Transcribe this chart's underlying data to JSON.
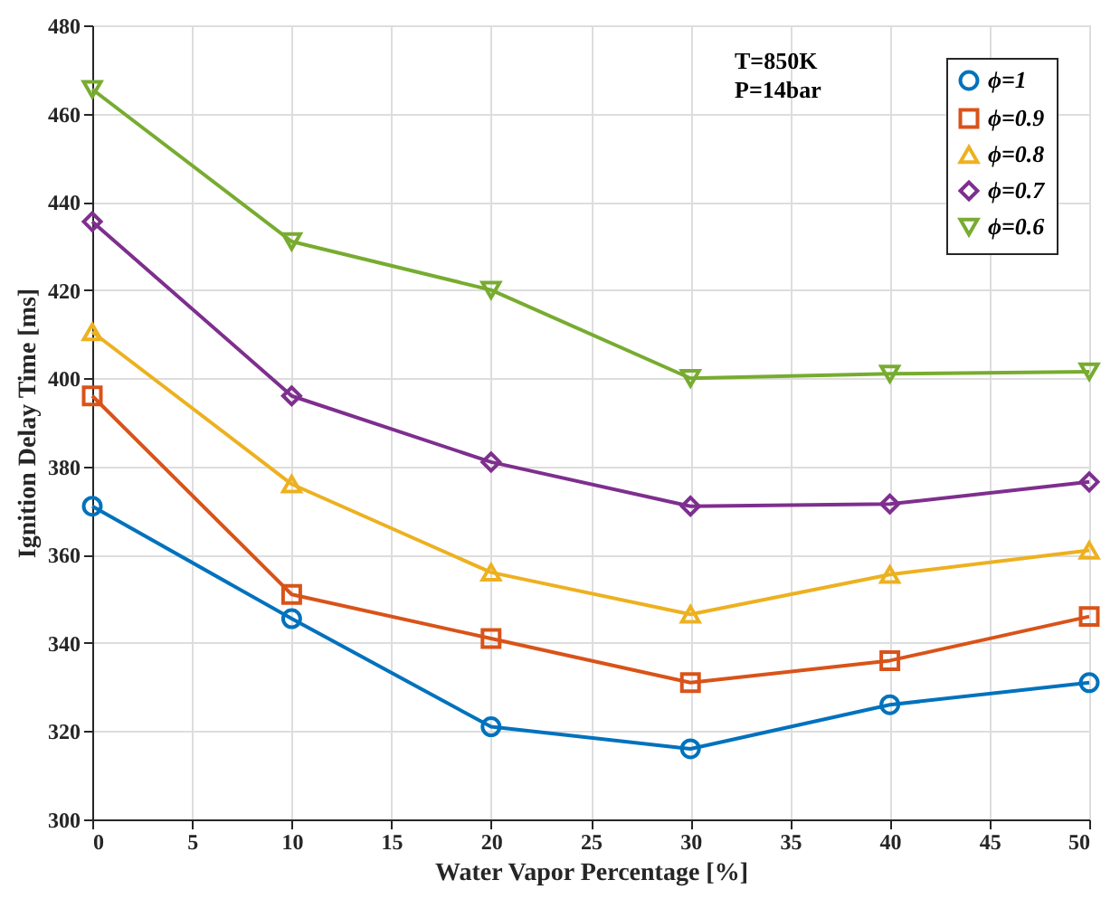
{
  "chart_data": {
    "type": "line",
    "xlabel": "Water Vapor Percentage [%]",
    "ylabel": "Ignition Delay Time [ms]",
    "x": [
      0,
      10,
      20,
      30,
      40,
      50
    ],
    "series": [
      {
        "name": "ϕ=1",
        "color": "#0072bd",
        "marker": "circle",
        "values": [
          371,
          345.5,
          321,
          316,
          326,
          331
        ]
      },
      {
        "name": "ϕ=0.9",
        "color": "#d95319",
        "marker": "square",
        "values": [
          396,
          351,
          341,
          331,
          336,
          346
        ]
      },
      {
        "name": "ϕ=0.8",
        "color": "#edb120",
        "marker": "triangle",
        "values": [
          410.5,
          376,
          356,
          346.5,
          355.5,
          361
        ]
      },
      {
        "name": "ϕ=0.7",
        "color": "#7e2f8e",
        "marker": "diamond",
        "values": [
          435.5,
          396,
          381,
          371,
          371.5,
          376.5
        ]
      },
      {
        "name": "ϕ=0.6",
        "color": "#77ac30",
        "marker": "triangle-down",
        "values": [
          465.5,
          431,
          420,
          400,
          401,
          401.5
        ]
      }
    ],
    "xlim": [
      0,
      50
    ],
    "xticks": [
      0,
      5,
      10,
      15,
      20,
      25,
      30,
      35,
      40,
      45,
      50
    ],
    "ylim": [
      300,
      480
    ],
    "yticks": [
      300,
      320,
      340,
      360,
      380,
      400,
      420,
      440,
      460,
      480
    ],
    "grid": true,
    "legend": "top right",
    "line_style": "solid",
    "annotations": [
      "T=850K\nP=14bar"
    ]
  }
}
